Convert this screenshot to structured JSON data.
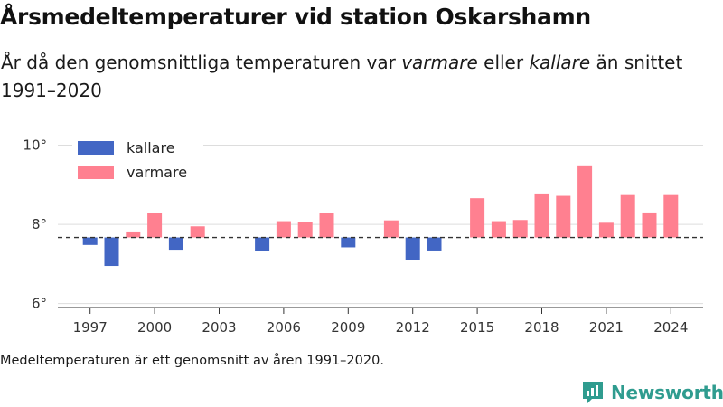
{
  "title": "Årsmedeltemperaturer vid station Oskarshamn",
  "subtitle": {
    "part1": "År då den genomsnittliga temperaturen var ",
    "warm_word": "varmare",
    "part2": " eller ",
    "cold_word": "kallare",
    "part3": " än snittet 1991–2020"
  },
  "footnote": "Medeltemperaturen är ett genomsnitt av åren 1991–2020.",
  "brand": "Newsworthy",
  "colors": {
    "kallare": "#4266c4",
    "varmare": "#ff8090",
    "brand": "#2f9c8f",
    "grid": "#dddddd",
    "axis": "#333333",
    "reference_line": "#333333"
  },
  "chart_data": {
    "type": "bar",
    "reference": 7.67,
    "ylim": [
      5.9,
      10.4
    ],
    "yticks": [
      6,
      8,
      10
    ],
    "ytick_labels": [
      "6°",
      "8°",
      "10°"
    ],
    "xticks": [
      1997,
      2000,
      2003,
      2006,
      2009,
      2012,
      2015,
      2018,
      2021,
      2024
    ],
    "xlim": [
      1995.5,
      2025.5
    ],
    "grid": true,
    "legend_position": "top-left",
    "legend": [
      {
        "key": "kallare",
        "label": "kallare"
      },
      {
        "key": "varmare",
        "label": "varmare"
      }
    ],
    "data": [
      {
        "year": 1997,
        "value": 7.48
      },
      {
        "year": 1998,
        "value": 6.95
      },
      {
        "year": 1999,
        "value": 7.82
      },
      {
        "year": 2000,
        "value": 8.28
      },
      {
        "year": 2001,
        "value": 7.36
      },
      {
        "year": 2002,
        "value": 7.95
      },
      {
        "year": 2005,
        "value": 7.33
      },
      {
        "year": 2006,
        "value": 8.08
      },
      {
        "year": 2007,
        "value": 8.05
      },
      {
        "year": 2008,
        "value": 8.28
      },
      {
        "year": 2009,
        "value": 7.42
      },
      {
        "year": 2011,
        "value": 8.1
      },
      {
        "year": 2012,
        "value": 7.09
      },
      {
        "year": 2013,
        "value": 7.34
      },
      {
        "year": 2015,
        "value": 8.66
      },
      {
        "year": 2016,
        "value": 8.08
      },
      {
        "year": 2017,
        "value": 8.11
      },
      {
        "year": 2018,
        "value": 8.78
      },
      {
        "year": 2019,
        "value": 8.72
      },
      {
        "year": 2020,
        "value": 9.49
      },
      {
        "year": 2021,
        "value": 8.04
      },
      {
        "year": 2022,
        "value": 8.74
      },
      {
        "year": 2023,
        "value": 8.3
      },
      {
        "year": 2024,
        "value": 8.74
      }
    ]
  }
}
